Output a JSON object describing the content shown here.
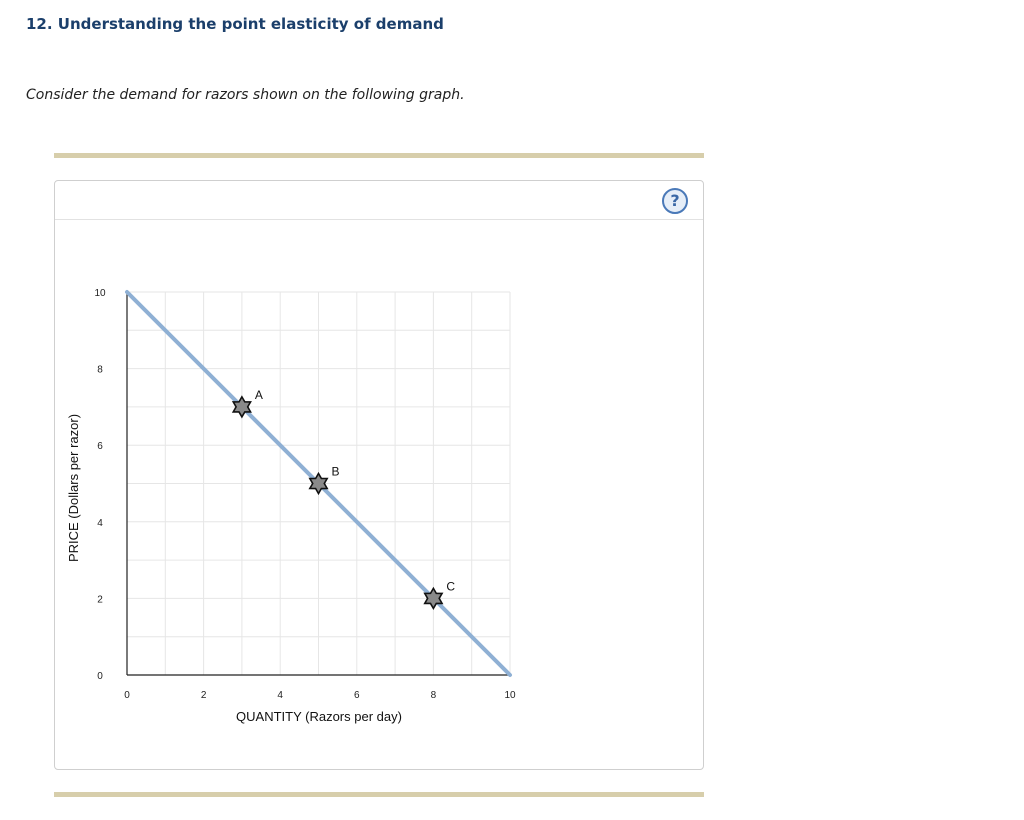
{
  "question": {
    "title": "12. Understanding the point elasticity of demand",
    "prompt": "Consider the demand for razors shown on the following graph."
  },
  "help_icon": {
    "glyph": "?",
    "icon": "help-circle-icon",
    "color": "#4a79b8"
  },
  "chart_data": {
    "type": "line",
    "xlabel": "QUANTITY (Razors per day)",
    "ylabel": "PRICE (Dollars per razor)",
    "xlim": [
      0,
      10
    ],
    "ylim": [
      0,
      10
    ],
    "xticks": [
      0,
      2,
      4,
      6,
      8,
      10
    ],
    "yticks": [
      0,
      2,
      4,
      6,
      8,
      10
    ],
    "grid": true,
    "line_color": "#8fb0d4",
    "series": [
      {
        "points": [
          [
            0,
            10
          ],
          [
            10,
            0
          ]
        ]
      }
    ],
    "points": [
      {
        "label": "A",
        "x": 3,
        "y": 7
      },
      {
        "label": "B",
        "x": 5,
        "y": 5
      },
      {
        "label": "C",
        "x": 8,
        "y": 2
      }
    ]
  }
}
